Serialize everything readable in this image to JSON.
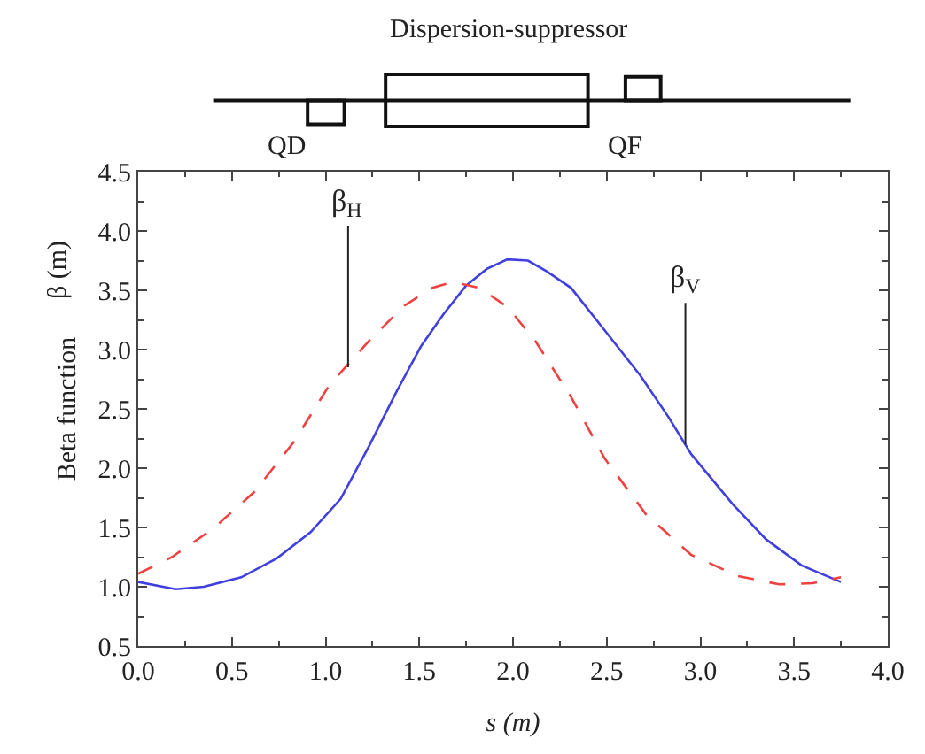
{
  "chart_data": {
    "type": "line",
    "title": "Dispersion-suppressor",
    "xlabel": "s (m)",
    "ylabel": "Beta function",
    "xlim": [
      0,
      4
    ],
    "ylim": [
      0.5,
      4.5
    ],
    "xticks": [
      {
        "value": 0,
        "label": "0.0"
      },
      0.5,
      {
        "value": 1,
        "label": "1.0"
      },
      1.5,
      {
        "value": 2,
        "label": "2.0"
      },
      2.5,
      {
        "value": 3,
        "label": "3.0"
      },
      3.5,
      {
        "value": 4,
        "label": "4.0"
      }
    ],
    "yticks": [
      0.5,
      {
        "value": 1,
        "label": "1.0"
      },
      1.5,
      {
        "value": 2,
        "label": "2.0"
      },
      2.5,
      {
        "value": 3,
        "label": "3.0"
      },
      3.5,
      {
        "value": 4,
        "label": "4.0"
      },
      4.5
    ],
    "marker": "none",
    "series": [
      {
        "color": "#4040e0",
        "line_style": "solid",
        "x": [
          0,
          0.2,
          0.35,
          0.55,
          0.74,
          0.92,
          1.08,
          1.23,
          1.38,
          1.51,
          1.63,
          1.75,
          1.86,
          1.97,
          2.08,
          2.18,
          2.31,
          2.49,
          2.68,
          2.83,
          2.95,
          3.17,
          3.35,
          3.54,
          3.75
        ],
        "values": [
          1.04,
          0.98,
          1.0,
          1.08,
          1.24,
          1.46,
          1.74,
          2.18,
          2.65,
          3.03,
          3.3,
          3.54,
          3.68,
          3.76,
          3.75,
          3.66,
          3.52,
          3.16,
          2.78,
          2.43,
          2.12,
          1.7,
          1.4,
          1.18,
          1.04
        ]
      },
      {
        "color": "#f04040",
        "line_style": "dashed",
        "x": [
          0,
          0.18,
          0.4,
          0.62,
          0.83,
          1.02,
          1.23,
          1.42,
          1.57,
          1.68,
          1.82,
          1.97,
          2.12,
          2.31,
          2.49,
          2.71,
          2.95,
          3.2,
          3.42,
          3.6,
          3.75
        ],
        "values": [
          1.11,
          1.25,
          1.49,
          1.8,
          2.22,
          2.7,
          3.07,
          3.37,
          3.52,
          3.57,
          3.52,
          3.36,
          3.07,
          2.6,
          2.08,
          1.61,
          1.27,
          1.09,
          1.02,
          1.03,
          1.08
        ]
      }
    ],
    "annotations": [
      {
        "text": "β$_{H}$",
        "x": 1.12,
        "y": 2.85
      },
      {
        "text": "β$_{V}$",
        "x": 2.92,
        "y": 2.2
      },
      "β (m)",
      "QD",
      "QF"
    ]
  }
}
